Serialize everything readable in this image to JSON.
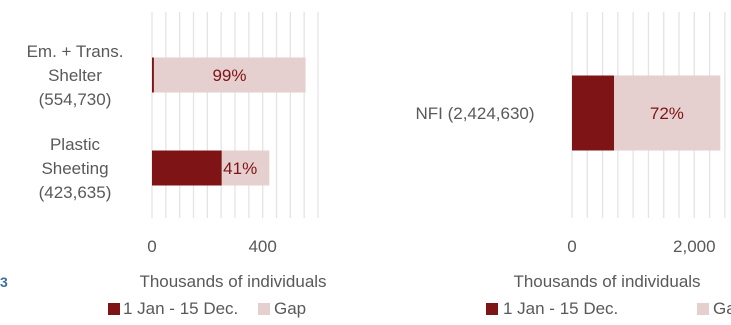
{
  "colors": {
    "covered": "#7f1416",
    "gap": "#e6cfcf",
    "grid": "#e4e4e4",
    "text": "#595959",
    "label_text": "#7f1416",
    "axis_line": "#bfbfbf"
  },
  "left_margin_text": "3",
  "chart_data": [
    {
      "type": "bar",
      "orientation": "horizontal",
      "stacked": true,
      "categories": [
        [
          "Em. + Trans.",
          "Shelter",
          "(554,730)"
        ],
        [
          "Plastic",
          "Sheeting",
          "(423,635)"
        ]
      ],
      "series": [
        {
          "name": "1 Jan - 15 Dec.",
          "values": [
            5,
            250
          ]
        },
        {
          "name": "Gap",
          "values": [
            550,
            174
          ]
        }
      ],
      "data_labels": [
        "99%",
        "41%"
      ],
      "xlabel": "Thousands of individuals",
      "xticks": [
        0,
        400
      ],
      "xlim": [
        0,
        600
      ],
      "grid": true,
      "legend": "bottom"
    },
    {
      "type": "bar",
      "orientation": "horizontal",
      "stacked": true,
      "categories": [
        [
          "NFI (2,424,630)"
        ]
      ],
      "series": [
        {
          "name": "1 Jan - 15 Dec.",
          "values": [
            679
          ]
        },
        {
          "name": "Gap",
          "values": [
            1746
          ]
        }
      ],
      "data_labels": [
        "72%"
      ],
      "xlabel": "Thousands of individuals",
      "xticks": [
        0,
        2000
      ],
      "xlim": [
        0,
        2600
      ],
      "grid": true,
      "legend": "bottom"
    }
  ]
}
